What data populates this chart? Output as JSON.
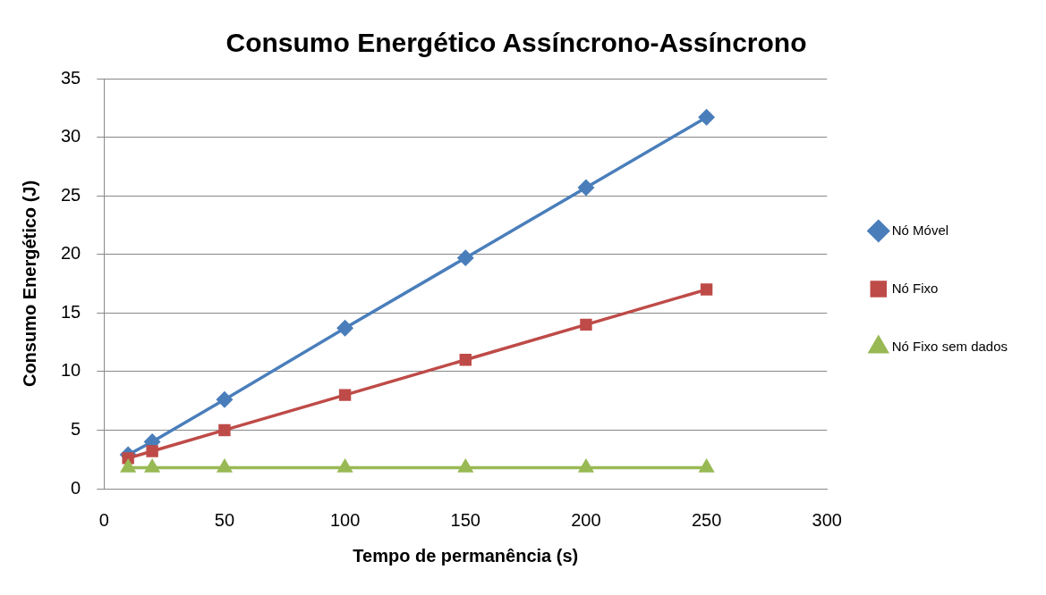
{
  "chart_data": {
    "type": "line",
    "title": "Consumo Energético Assíncrono-Assíncrono",
    "xlabel": "Tempo de permanência (s)",
    "ylabel": "Consumo Energético (J)",
    "x": [
      10,
      20,
      50,
      100,
      150,
      200,
      250
    ],
    "series": [
      {
        "name": "Nó Móvel",
        "color": "#4a7ebb",
        "marker": "diamond",
        "values": [
          2.9,
          4.0,
          7.6,
          13.7,
          19.7,
          25.7,
          31.7
        ]
      },
      {
        "name": "Nó Fixo",
        "color": "#be4b48",
        "marker": "square",
        "values": [
          2.6,
          3.2,
          5.0,
          8.0,
          11.0,
          14.0,
          17.0
        ]
      },
      {
        "name": "Nó Fixo sem dados",
        "color": "#98b954",
        "marker": "triangle",
        "values": [
          1.8,
          1.8,
          1.8,
          1.8,
          1.8,
          1.8,
          1.8
        ]
      }
    ],
    "xlim": [
      0,
      300
    ],
    "xticks": [
      0,
      50,
      100,
      150,
      200,
      250,
      300
    ],
    "ylim": [
      0,
      35
    ],
    "yticks": [
      0,
      5,
      10,
      15,
      20,
      25,
      30,
      35
    ],
    "grid": "y",
    "legend": "right",
    "line_style": "solid"
  }
}
